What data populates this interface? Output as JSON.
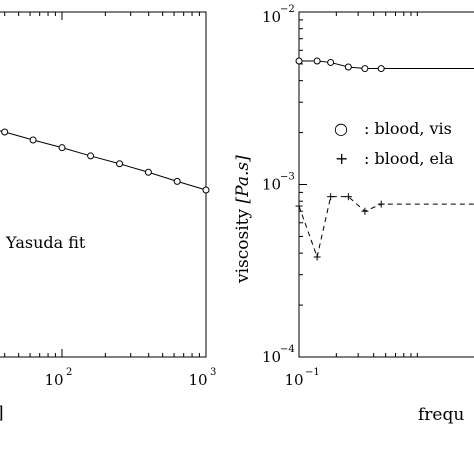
{
  "chart_data": [
    {
      "type": "line",
      "panel": "left",
      "scale": {
        "x": "log",
        "y": "log"
      },
      "xlim": [
        10,
        1000
      ],
      "x_tick_labels": [
        {
          "value": 100,
          "base": "10",
          "exp": "2"
        },
        {
          "value": 1000,
          "base": "10",
          "exp": "3"
        }
      ],
      "xlabel_fragment": "]",
      "annotation": "Yasuda fit",
      "grid": false,
      "series": [
        {
          "marker": "circle",
          "line": "solid",
          "x": [
            27,
            40,
            63,
            100,
            158,
            251,
            398,
            631,
            1000
          ],
          "y": [
            0.78,
            0.74,
            0.69,
            0.645,
            0.6,
            0.56,
            0.52,
            0.48,
            0.445
          ]
        }
      ]
    },
    {
      "type": "line",
      "panel": "right",
      "scale": {
        "x": "log",
        "y": "log"
      },
      "xlim": [
        0.1,
        0.9
      ],
      "ylim": [
        0.0001,
        0.01
      ],
      "x_tick_labels": [
        {
          "value": 0.1,
          "base": "10",
          "exp": "−1"
        }
      ],
      "y_tick_labels": [
        {
          "value": 0.01,
          "base": "10",
          "exp": "−2"
        },
        {
          "value": 0.001,
          "base": "10",
          "exp": "−3"
        },
        {
          "value": 0.0001,
          "base": "10",
          "exp": "−4"
        }
      ],
      "ylabel_prefix": "viscosity ",
      "ylabel_unit": "[Pa.s]",
      "xlabel": "frequ",
      "grid": false,
      "series": [
        {
          "legend_symbol": "○",
          "name": ": blood, vis",
          "marker": "circle",
          "line": "solid",
          "x": [
            0.1,
            0.14,
            0.18,
            0.25,
            0.34,
            0.46
          ],
          "y": [
            0.0052,
            0.0052,
            0.0051,
            0.0048,
            0.0047,
            0.0047
          ]
        },
        {
          "legend_symbol": "+",
          "name": ": blood, ela",
          "marker": "plus",
          "line": "dashed",
          "x": [
            0.1,
            0.14,
            0.18,
            0.25,
            0.34,
            0.46
          ],
          "y": [
            0.00075,
            0.00038,
            0.00085,
            0.00085,
            0.0007,
            0.00077
          ]
        }
      ]
    }
  ]
}
